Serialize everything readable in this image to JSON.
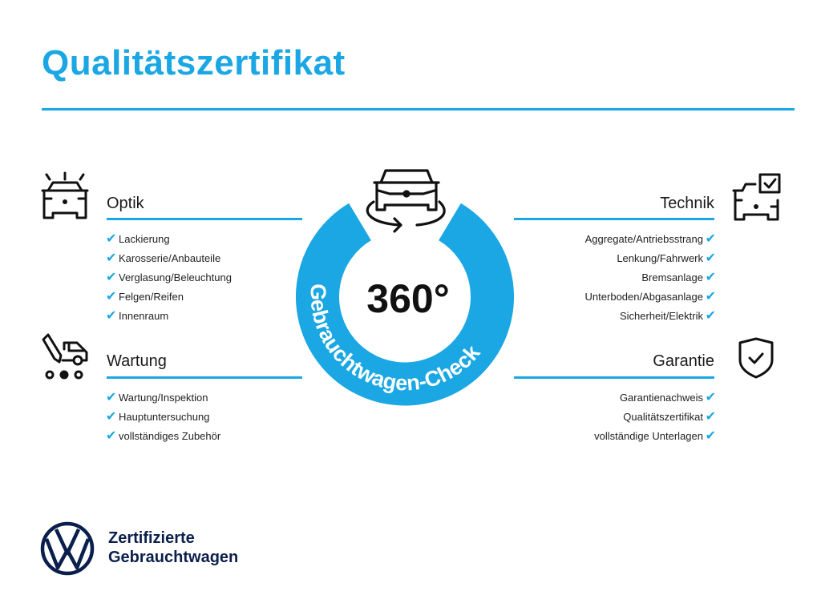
{
  "title": "Qualitätszertifikat",
  "colors": {
    "accent": "#1aa7e3",
    "brand_navy": "#0b1f4d"
  },
  "badge": {
    "number": "360°",
    "ring_text": "Gebrauchtwagen-Check",
    "icon": "car-rotate-icon"
  },
  "sections": {
    "optik": {
      "heading": "Optik",
      "icon": "car-lights-icon",
      "items": [
        "Lackierung",
        "Karosserie/Anbauteile",
        "Verglasung/Beleuchtung",
        "Felgen/Reifen",
        "Innenraum"
      ]
    },
    "wartung": {
      "heading": "Wartung",
      "icon": "service-van-pencil-icon",
      "items": [
        "Wartung/Inspektion",
        "Hauptuntersuchung",
        "vollständiges Zubehör"
      ]
    },
    "technik": {
      "heading": "Technik",
      "icon": "car-checkbox-icon",
      "items": [
        "Aggregate/Antriebsstrang",
        "Lenkung/Fahrwerk",
        "Bremsanlage",
        "Unterboden/Abgasanlage",
        "Sicherheit/Elektrik"
      ]
    },
    "garantie": {
      "heading": "Garantie",
      "icon": "shield-check-icon",
      "items": [
        "Garantienachweis",
        "Qualitätszertifikat",
        "vollständige Unterlagen"
      ]
    }
  },
  "footer": {
    "line1": "Zertifizierte",
    "line2": "Gebrauchtwagen",
    "logo": "vw-logo"
  }
}
